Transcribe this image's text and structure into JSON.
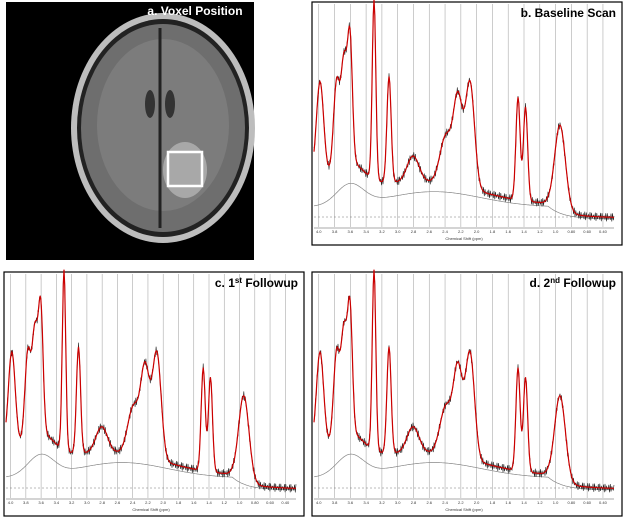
{
  "panels": [
    {
      "label": {
        "prefix": "a. Voxel Position",
        "sup": "",
        "suffix": ""
      }
    },
    {
      "label": {
        "prefix": "b. Baseline Scan",
        "sup": "",
        "suffix": ""
      }
    },
    {
      "label": {
        "prefix": "c. 1",
        "sup": "st",
        "suffix": " Followup"
      }
    },
    {
      "label": {
        "prefix": "d. 2",
        "sup": "nd",
        "suffix": " Followup"
      }
    }
  ],
  "spectrum_axis": {
    "title": "Chemical Shift (ppm)",
    "ticks": [
      "4.0",
      "3.8",
      "3.6",
      "3.4",
      "3.2",
      "3.0",
      "2.8",
      "2.6",
      "2.4",
      "2.2",
      "2.0",
      "1.8",
      "1.6",
      "1.4",
      "1.2",
      "1.0",
      "0.80",
      "0.60",
      "0.40"
    ]
  }
}
